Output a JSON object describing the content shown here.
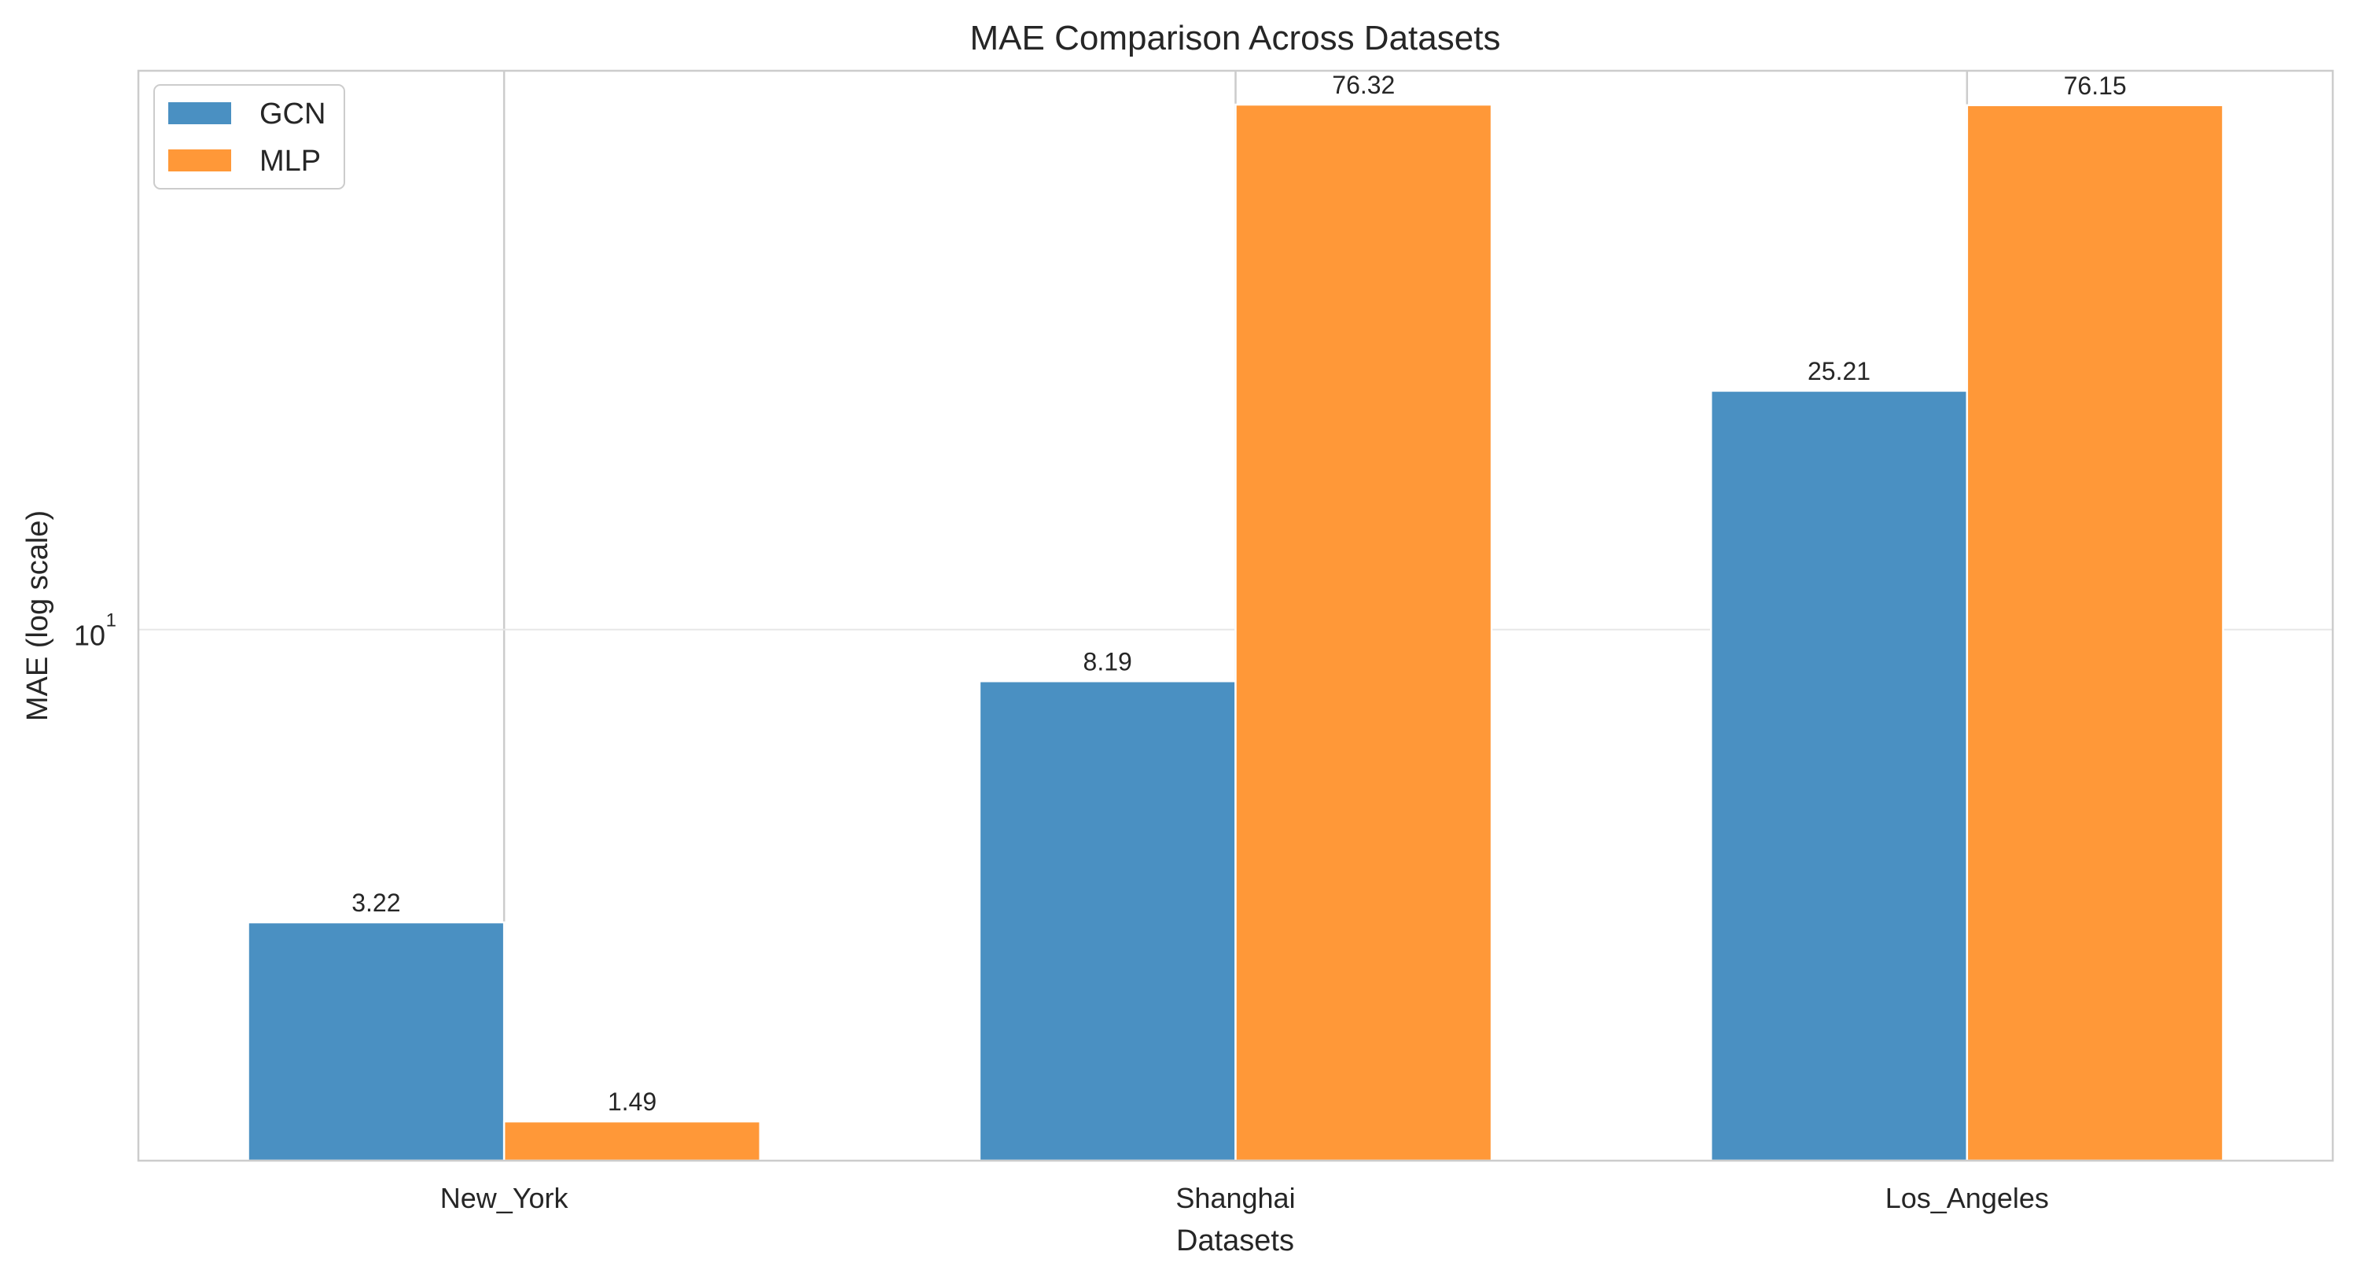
{
  "chart_data": {
    "type": "bar",
    "title": "MAE Comparison Across Datasets",
    "xlabel": "Datasets",
    "ylabel": "MAE (log scale)",
    "yscale": "log",
    "ylim": [
      1.28,
      87.0
    ],
    "categories": [
      "New_York",
      "Shanghai",
      "Los_Angeles"
    ],
    "series": [
      {
        "name": "GCN",
        "color": "#4a90c2",
        "values": [
          3.22,
          8.19,
          25.21
        ],
        "labels": [
          "3.22",
          "8.19",
          "25.21"
        ]
      },
      {
        "name": "MLP",
        "color": "#ff9838",
        "values": [
          1.49,
          76.32,
          76.15
        ],
        "labels": [
          "1.49",
          "76.32",
          "76.15"
        ]
      }
    ],
    "yticks": [
      {
        "value": 10,
        "base": "10",
        "exp": "1"
      }
    ],
    "grid": true,
    "legend_position": "top-left"
  }
}
